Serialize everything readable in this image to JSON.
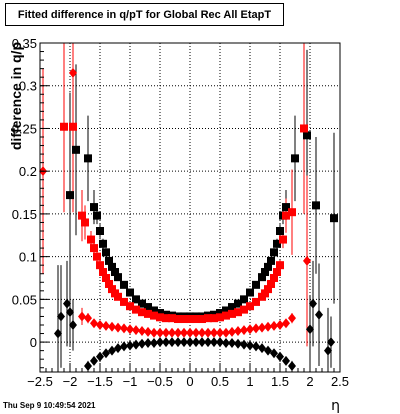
{
  "timestamp": "Thu Sep  9 10:49:54 2021",
  "colors": {
    "black_series": "#000000",
    "red_series": "#ff0000",
    "frame": "#000000",
    "grid": "#000000"
  },
  "chart_data": {
    "type": "scatter",
    "title": "Fitted difference in q/pT for Global Rec All EtapT",
    "xlabel": "η",
    "ylabel": "difference in q/p",
    "xlim": [
      -2.5,
      2.5
    ],
    "ylim": [
      -0.035,
      0.35
    ],
    "grid": true,
    "x_ticks": [
      -2.5,
      -2,
      -1.5,
      -1,
      -0.5,
      0,
      0.5,
      1,
      1.5,
      2,
      2.5
    ],
    "x_tick_labels": [
      "−2.5",
      "−2",
      "−1.5",
      "−1",
      "−0.5",
      "0",
      "0.5",
      "1",
      "1.5",
      "2",
      "2.5"
    ],
    "y_ticks": [
      0,
      0.05,
      0.1,
      0.15,
      0.2,
      0.25,
      0.3,
      0.35
    ],
    "y_tick_labels": [
      "0",
      "0.05",
      "0.1",
      "0.15",
      "0.2",
      "0.25",
      "0.3",
      "0.35"
    ],
    "series": [
      {
        "marker": "square",
        "color": "#000000",
        "x": [
          -2.0,
          -1.9,
          -1.7,
          -1.6,
          -1.55,
          -1.5,
          -1.45,
          -1.4,
          -1.35,
          -1.3,
          -1.25,
          -1.2,
          -1.1,
          -1.0,
          -0.9,
          -0.8,
          -0.7,
          -0.6,
          -0.5,
          -0.4,
          -0.3,
          -0.2,
          -0.1,
          0,
          0.1,
          0.2,
          0.3,
          0.4,
          0.5,
          0.6,
          0.7,
          0.8,
          0.9,
          1.0,
          1.1,
          1.2,
          1.25,
          1.3,
          1.35,
          1.4,
          1.45,
          1.5,
          1.55,
          1.6,
          1.75,
          1.95,
          2.1,
          2.4
        ],
        "y": [
          0.172,
          0.225,
          0.215,
          0.158,
          0.148,
          0.13,
          0.115,
          0.105,
          0.095,
          0.088,
          0.082,
          0.076,
          0.067,
          0.058,
          0.05,
          0.045,
          0.041,
          0.037,
          0.034,
          0.032,
          0.031,
          0.03,
          0.03,
          0.03,
          0.03,
          0.03,
          0.031,
          0.032,
          0.034,
          0.037,
          0.041,
          0.045,
          0.05,
          0.058,
          0.067,
          0.076,
          0.082,
          0.088,
          0.095,
          0.105,
          0.115,
          0.13,
          0.148,
          0.158,
          0.215,
          0.242,
          0.16,
          0.145
        ],
        "yerr": [
          0.12,
          0.1,
          0.05,
          0.02,
          0.01,
          0.008,
          0.006,
          0.005,
          0.004,
          0.003,
          0.003,
          0.003,
          0.002,
          0.002,
          0.002,
          0.002,
          0.002,
          0.002,
          0.002,
          0.002,
          0.002,
          0.002,
          0.002,
          0.002,
          0.002,
          0.002,
          0.002,
          0.002,
          0.002,
          0.002,
          0.002,
          0.002,
          0.002,
          0.002,
          0.002,
          0.003,
          0.003,
          0.003,
          0.004,
          0.005,
          0.006,
          0.008,
          0.01,
          0.02,
          0.05,
          0.1,
          0.08,
          0.1
        ]
      },
      {
        "marker": "square",
        "color": "#ff0000",
        "x": [
          -2.1,
          -1.95,
          -1.8,
          -1.75,
          -1.65,
          -1.6,
          -1.55,
          -1.5,
          -1.45,
          -1.4,
          -1.35,
          -1.3,
          -1.25,
          -1.2,
          -1.1,
          -1.0,
          -0.9,
          -0.8,
          -0.7,
          -0.6,
          -0.5,
          -0.4,
          -0.3,
          -0.2,
          -0.1,
          0,
          0.1,
          0.2,
          0.3,
          0.4,
          0.5,
          0.6,
          0.7,
          0.8,
          0.9,
          1.0,
          1.1,
          1.2,
          1.25,
          1.3,
          1.35,
          1.4,
          1.45,
          1.5,
          1.55,
          1.6,
          1.7,
          1.9
        ],
        "y": [
          0.252,
          0.252,
          0.148,
          0.14,
          0.12,
          0.11,
          0.1,
          0.09,
          0.082,
          0.075,
          0.068,
          0.062,
          0.057,
          0.053,
          0.047,
          0.042,
          0.038,
          0.035,
          0.033,
          0.031,
          0.029,
          0.028,
          0.028,
          0.027,
          0.027,
          0.027,
          0.027,
          0.027,
          0.028,
          0.028,
          0.029,
          0.031,
          0.033,
          0.035,
          0.038,
          0.042,
          0.047,
          0.053,
          0.057,
          0.062,
          0.068,
          0.075,
          0.082,
          0.09,
          0.12,
          0.148,
          0.152,
          0.25
        ],
        "yerr": [
          0.1,
          0.1,
          0.03,
          0.02,
          0.01,
          0.008,
          0.007,
          0.006,
          0.005,
          0.004,
          0.003,
          0.003,
          0.003,
          0.002,
          0.002,
          0.002,
          0.002,
          0.002,
          0.002,
          0.002,
          0.002,
          0.002,
          0.002,
          0.002,
          0.002,
          0.002,
          0.002,
          0.002,
          0.002,
          0.002,
          0.002,
          0.002,
          0.002,
          0.002,
          0.002,
          0.002,
          0.002,
          0.002,
          0.003,
          0.003,
          0.003,
          0.004,
          0.005,
          0.006,
          0.01,
          0.02,
          0.05,
          0.1
        ]
      },
      {
        "marker": "diamond",
        "color": "#000000",
        "x": [
          -2.2,
          -2.15,
          -2.05,
          -2.0,
          -1.95,
          -1.7,
          -1.6,
          -1.5,
          -1.4,
          -1.3,
          -1.2,
          -1.1,
          -1.0,
          -0.9,
          -0.8,
          -0.7,
          -0.6,
          -0.5,
          -0.4,
          -0.3,
          -0.2,
          -0.1,
          0,
          0.1,
          0.2,
          0.3,
          0.4,
          0.5,
          0.6,
          0.7,
          0.8,
          0.9,
          1.0,
          1.1,
          1.2,
          1.3,
          1.4,
          1.5,
          1.6,
          1.7,
          2.0,
          2.05,
          2.15,
          2.3,
          2.35
        ],
        "y": [
          0.01,
          0.03,
          0.045,
          0.035,
          0.02,
          -0.028,
          -0.022,
          -0.017,
          -0.013,
          -0.01,
          -0.007,
          -0.005,
          -0.004,
          -0.003,
          -0.002,
          -0.001,
          -0.001,
          0,
          0,
          0,
          0,
          0,
          0,
          0,
          0,
          0,
          0,
          0,
          -0.001,
          -0.001,
          -0.002,
          -0.003,
          -0.004,
          -0.005,
          -0.007,
          -0.01,
          -0.013,
          -0.017,
          -0.022,
          -0.028,
          0.015,
          0.045,
          0.032,
          -0.01,
          0.0
        ],
        "yerr": [
          0.08,
          0.06,
          0.05,
          0.04,
          0.03,
          0.006,
          0.005,
          0.004,
          0.003,
          0.002,
          0.002,
          0.002,
          0.002,
          0.002,
          0.002,
          0.002,
          0.002,
          0.002,
          0.002,
          0.002,
          0.002,
          0.002,
          0.002,
          0.002,
          0.002,
          0.002,
          0.002,
          0.002,
          0.002,
          0.002,
          0.002,
          0.002,
          0.002,
          0.002,
          0.002,
          0.002,
          0.003,
          0.004,
          0.005,
          0.006,
          0.04,
          0.05,
          0.06,
          0.05,
          0.03
        ]
      },
      {
        "marker": "diamond",
        "color": "#ff0000",
        "x": [
          -2.45,
          -1.95,
          -1.8,
          -1.7,
          -1.6,
          -1.5,
          -1.4,
          -1.3,
          -1.2,
          -1.1,
          -1.0,
          -0.9,
          -0.8,
          -0.7,
          -0.6,
          -0.5,
          -0.4,
          -0.3,
          -0.2,
          -0.1,
          0,
          0.1,
          0.2,
          0.3,
          0.4,
          0.5,
          0.6,
          0.7,
          0.8,
          0.9,
          1.0,
          1.1,
          1.2,
          1.3,
          1.4,
          1.5,
          1.6,
          1.7,
          1.95
        ],
        "y": [
          0.2,
          0.315,
          0.03,
          0.028,
          0.022,
          0.02,
          0.019,
          0.018,
          0.017,
          0.016,
          0.015,
          0.014,
          0.013,
          0.012,
          0.011,
          0.011,
          0.011,
          0.011,
          0.011,
          0.011,
          0.011,
          0.011,
          0.011,
          0.011,
          0.011,
          0.011,
          0.011,
          0.012,
          0.013,
          0.014,
          0.015,
          0.016,
          0.017,
          0.018,
          0.019,
          0.02,
          0.022,
          0.028,
          0.095
        ],
        "yerr": [
          0.12,
          0.1,
          0.01,
          0.006,
          0.004,
          0.003,
          0.002,
          0.002,
          0.002,
          0.002,
          0.002,
          0.002,
          0.002,
          0.002,
          0.002,
          0.002,
          0.002,
          0.002,
          0.002,
          0.002,
          0.002,
          0.002,
          0.002,
          0.002,
          0.002,
          0.002,
          0.002,
          0.002,
          0.002,
          0.002,
          0.002,
          0.002,
          0.002,
          0.002,
          0.002,
          0.003,
          0.004,
          0.006,
          0.1
        ]
      }
    ]
  }
}
